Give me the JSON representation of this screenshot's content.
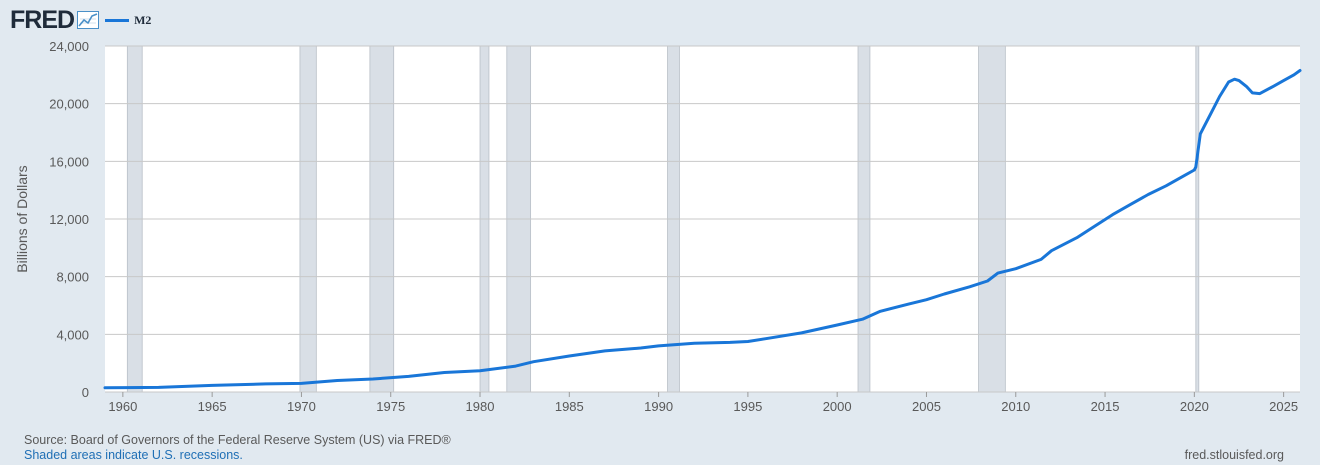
{
  "header": {
    "logo_text": "FRED",
    "logo_icon": "line-chart-icon",
    "legend_label": "M2"
  },
  "colors": {
    "line": "#1976d8",
    "recession": "#d9dfe6",
    "recession_border": "#b8bfc7",
    "grid": "#c8c8c8",
    "plot_bg": "#ffffff",
    "page_bg": "#e1e9f0"
  },
  "footer": {
    "source": "Source: Board of Governors of the Federal Reserve System (US) via FRED®",
    "recession_note": "Shaded areas indicate U.S. recessions.",
    "site": "fred.stlouisfed.org"
  },
  "chart_data": {
    "type": "line",
    "title": "",
    "xlabel": "",
    "ylabel": "Billions of Dollars",
    "xlim": [
      "1959-01",
      "2025-12"
    ],
    "ylim": [
      0,
      24000
    ],
    "x_ticks": [
      "1960",
      "1965",
      "1970",
      "1975",
      "1980",
      "1985",
      "1990",
      "1995",
      "2000",
      "2005",
      "2010",
      "2015",
      "2020",
      "2025"
    ],
    "y_ticks": [
      "0",
      "4,000",
      "8,000",
      "12,000",
      "16,000",
      "20,000",
      "24,000"
    ],
    "grid": true,
    "legend_position": "top-left",
    "recessions": [
      [
        "1960-04",
        "1961-02"
      ],
      [
        "1969-12",
        "1970-11"
      ],
      [
        "1973-11",
        "1975-03"
      ],
      [
        "1980-01",
        "1980-07"
      ],
      [
        "1981-07",
        "1982-11"
      ],
      [
        "1990-07",
        "1991-03"
      ],
      [
        "2001-03",
        "2001-11"
      ],
      [
        "2007-12",
        "2009-06"
      ],
      [
        "2020-02",
        "2020-04"
      ]
    ],
    "series": [
      {
        "name": "M2",
        "x": [
          "1959-01",
          "1962-01",
          "1965-01",
          "1968-01",
          "1970-01",
          "1972-01",
          "1974-01",
          "1976-01",
          "1978-01",
          "1980-01",
          "1982-01",
          "1983-01",
          "1985-01",
          "1987-01",
          "1989-01",
          "1990-01",
          "1992-01",
          "1994-01",
          "1995-01",
          "1996-01",
          "1998-01",
          "2000-01",
          "2001-06",
          "2002-06",
          "2004-01",
          "2005-01",
          "2006-01",
          "2007-06",
          "2008-06",
          "2009-01",
          "2010-01",
          "2011-06",
          "2012-01",
          "2013-06",
          "2014-06",
          "2015-06",
          "2016-06",
          "2017-06",
          "2018-06",
          "2019-06",
          "2020-01",
          "2020-02",
          "2020-05",
          "2020-12",
          "2021-06",
          "2021-12",
          "2022-04",
          "2022-07",
          "2022-12",
          "2023-04",
          "2023-09",
          "2024-06",
          "2025-01",
          "2025-08",
          "2025-12"
        ],
        "values": [
          290,
          320,
          460,
          560,
          600,
          800,
          900,
          1080,
          1350,
          1480,
          1800,
          2100,
          2500,
          2850,
          3050,
          3200,
          3380,
          3440,
          3500,
          3700,
          4100,
          4650,
          5050,
          5600,
          6100,
          6400,
          6800,
          7300,
          7700,
          8250,
          8550,
          9200,
          9800,
          10700,
          11500,
          12300,
          13000,
          13700,
          14300,
          15000,
          15400,
          15600,
          17900,
          19300,
          20500,
          21500,
          21700,
          21600,
          21200,
          20750,
          20700,
          21200,
          21600,
          22000,
          22300
        ]
      }
    ]
  }
}
